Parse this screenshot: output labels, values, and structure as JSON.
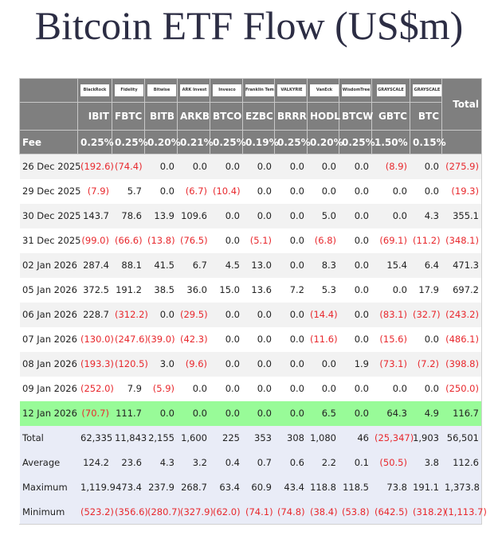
{
  "title": "Bitcoin ETF Flow (US$m)",
  "table": {
    "issuers": [
      "BlackRock",
      "Fidelity",
      "Bitwise",
      "ARK Invest",
      "Invesco",
      "Franklin Templeton",
      "VALKYRIE",
      "VanEck",
      "WisdomTree",
      "GRAYSCALE",
      "GRAYSCALE"
    ],
    "total_label": "Total",
    "tickers": [
      "IBIT",
      "FBTC",
      "BITB",
      "ARKB",
      "BTCO",
      "EZBC",
      "BRRR",
      "HODL",
      "BTCW",
      "GBTC",
      "BTC"
    ],
    "fee_label": "Fee",
    "fees": [
      "0.25%",
      "0.25%",
      "0.20%",
      "0.21%",
      "0.25%",
      "0.19%",
      "0.25%",
      "0.20%",
      "0.25%",
      "1.50%",
      "0.15%"
    ],
    "rows": [
      {
        "date": "26 Dec 2025",
        "values": [
          "(192.6)",
          "(74.4)",
          "0.0",
          "0.0",
          "0.0",
          "0.0",
          "0.0",
          "0.0",
          "0.0",
          "(8.9)",
          "0.0",
          "(275.9)"
        ]
      },
      {
        "date": "29 Dec 2025",
        "values": [
          "(7.9)",
          "5.7",
          "0.0",
          "(6.7)",
          "(10.4)",
          "0.0",
          "0.0",
          "0.0",
          "0.0",
          "0.0",
          "0.0",
          "(19.3)"
        ]
      },
      {
        "date": "30 Dec 2025",
        "values": [
          "143.7",
          "78.6",
          "13.9",
          "109.6",
          "0.0",
          "0.0",
          "0.0",
          "5.0",
          "0.0",
          "0.0",
          "4.3",
          "355.1"
        ]
      },
      {
        "date": "31 Dec 2025",
        "values": [
          "(99.0)",
          "(66.6)",
          "(13.8)",
          "(76.5)",
          "0.0",
          "(5.1)",
          "0.0",
          "(6.8)",
          "0.0",
          "(69.1)",
          "(11.2)",
          "(348.1)"
        ]
      },
      {
        "date": "02 Jan 2026",
        "values": [
          "287.4",
          "88.1",
          "41.5",
          "6.7",
          "4.5",
          "13.0",
          "0.0",
          "8.3",
          "0.0",
          "15.4",
          "6.4",
          "471.3"
        ]
      },
      {
        "date": "05 Jan 2026",
        "values": [
          "372.5",
          "191.2",
          "38.5",
          "36.0",
          "15.0",
          "13.6",
          "7.2",
          "5.3",
          "0.0",
          "0.0",
          "17.9",
          "697.2"
        ]
      },
      {
        "date": "06 Jan 2026",
        "values": [
          "228.7",
          "(312.2)",
          "0.0",
          "(29.5)",
          "0.0",
          "0.0",
          "0.0",
          "(14.4)",
          "0.0",
          "(83.1)",
          "(32.7)",
          "(243.2)"
        ]
      },
      {
        "date": "07 Jan 2026",
        "values": [
          "(130.0)",
          "(247.6)",
          "(39.0)",
          "(42.3)",
          "0.0",
          "0.0",
          "0.0",
          "(11.6)",
          "0.0",
          "(15.6)",
          "0.0",
          "(486.1)"
        ]
      },
      {
        "date": "08 Jan 2026",
        "values": [
          "(193.3)",
          "(120.5)",
          "3.0",
          "(9.6)",
          "0.0",
          "0.0",
          "0.0",
          "0.0",
          "1.9",
          "(73.1)",
          "(7.2)",
          "(398.8)"
        ]
      },
      {
        "date": "09 Jan 2026",
        "values": [
          "(252.0)",
          "7.9",
          "(5.9)",
          "0.0",
          "0.0",
          "0.0",
          "0.0",
          "0.0",
          "0.0",
          "0.0",
          "0.0",
          "(250.0)"
        ]
      },
      {
        "date": "12 Jan 2026",
        "highlight": true,
        "values": [
          "(70.7)",
          "111.7",
          "0.0",
          "0.0",
          "0.0",
          "0.0",
          "0.0",
          "6.5",
          "0.0",
          "64.3",
          "4.9",
          "116.7"
        ]
      }
    ],
    "summary": [
      {
        "date": "Total",
        "values": [
          "62,335",
          "11,843",
          "2,155",
          "1,600",
          "225",
          "353",
          "308",
          "1,080",
          "46",
          "(25,347)",
          "1,903",
          "56,501"
        ]
      },
      {
        "date": "Average",
        "values": [
          "124.2",
          "23.6",
          "4.3",
          "3.2",
          "0.4",
          "0.7",
          "0.6",
          "2.2",
          "0.1",
          "(50.5)",
          "3.8",
          "112.6"
        ]
      },
      {
        "date": "Maximum",
        "values": [
          "1,119.9",
          "473.4",
          "237.9",
          "268.7",
          "63.4",
          "60.9",
          "43.4",
          "118.8",
          "118.5",
          "73.8",
          "191.1",
          "1,373.8"
        ]
      },
      {
        "date": "Minimum",
        "values": [
          "(523.2)",
          "(356.6)",
          "(280.7)",
          "(327.9)",
          "(62.0)",
          "(74.1)",
          "(74.8)",
          "(38.4)",
          "(53.8)",
          "(642.5)",
          "(318.2)",
          "(1,113.7)"
        ]
      }
    ]
  }
}
